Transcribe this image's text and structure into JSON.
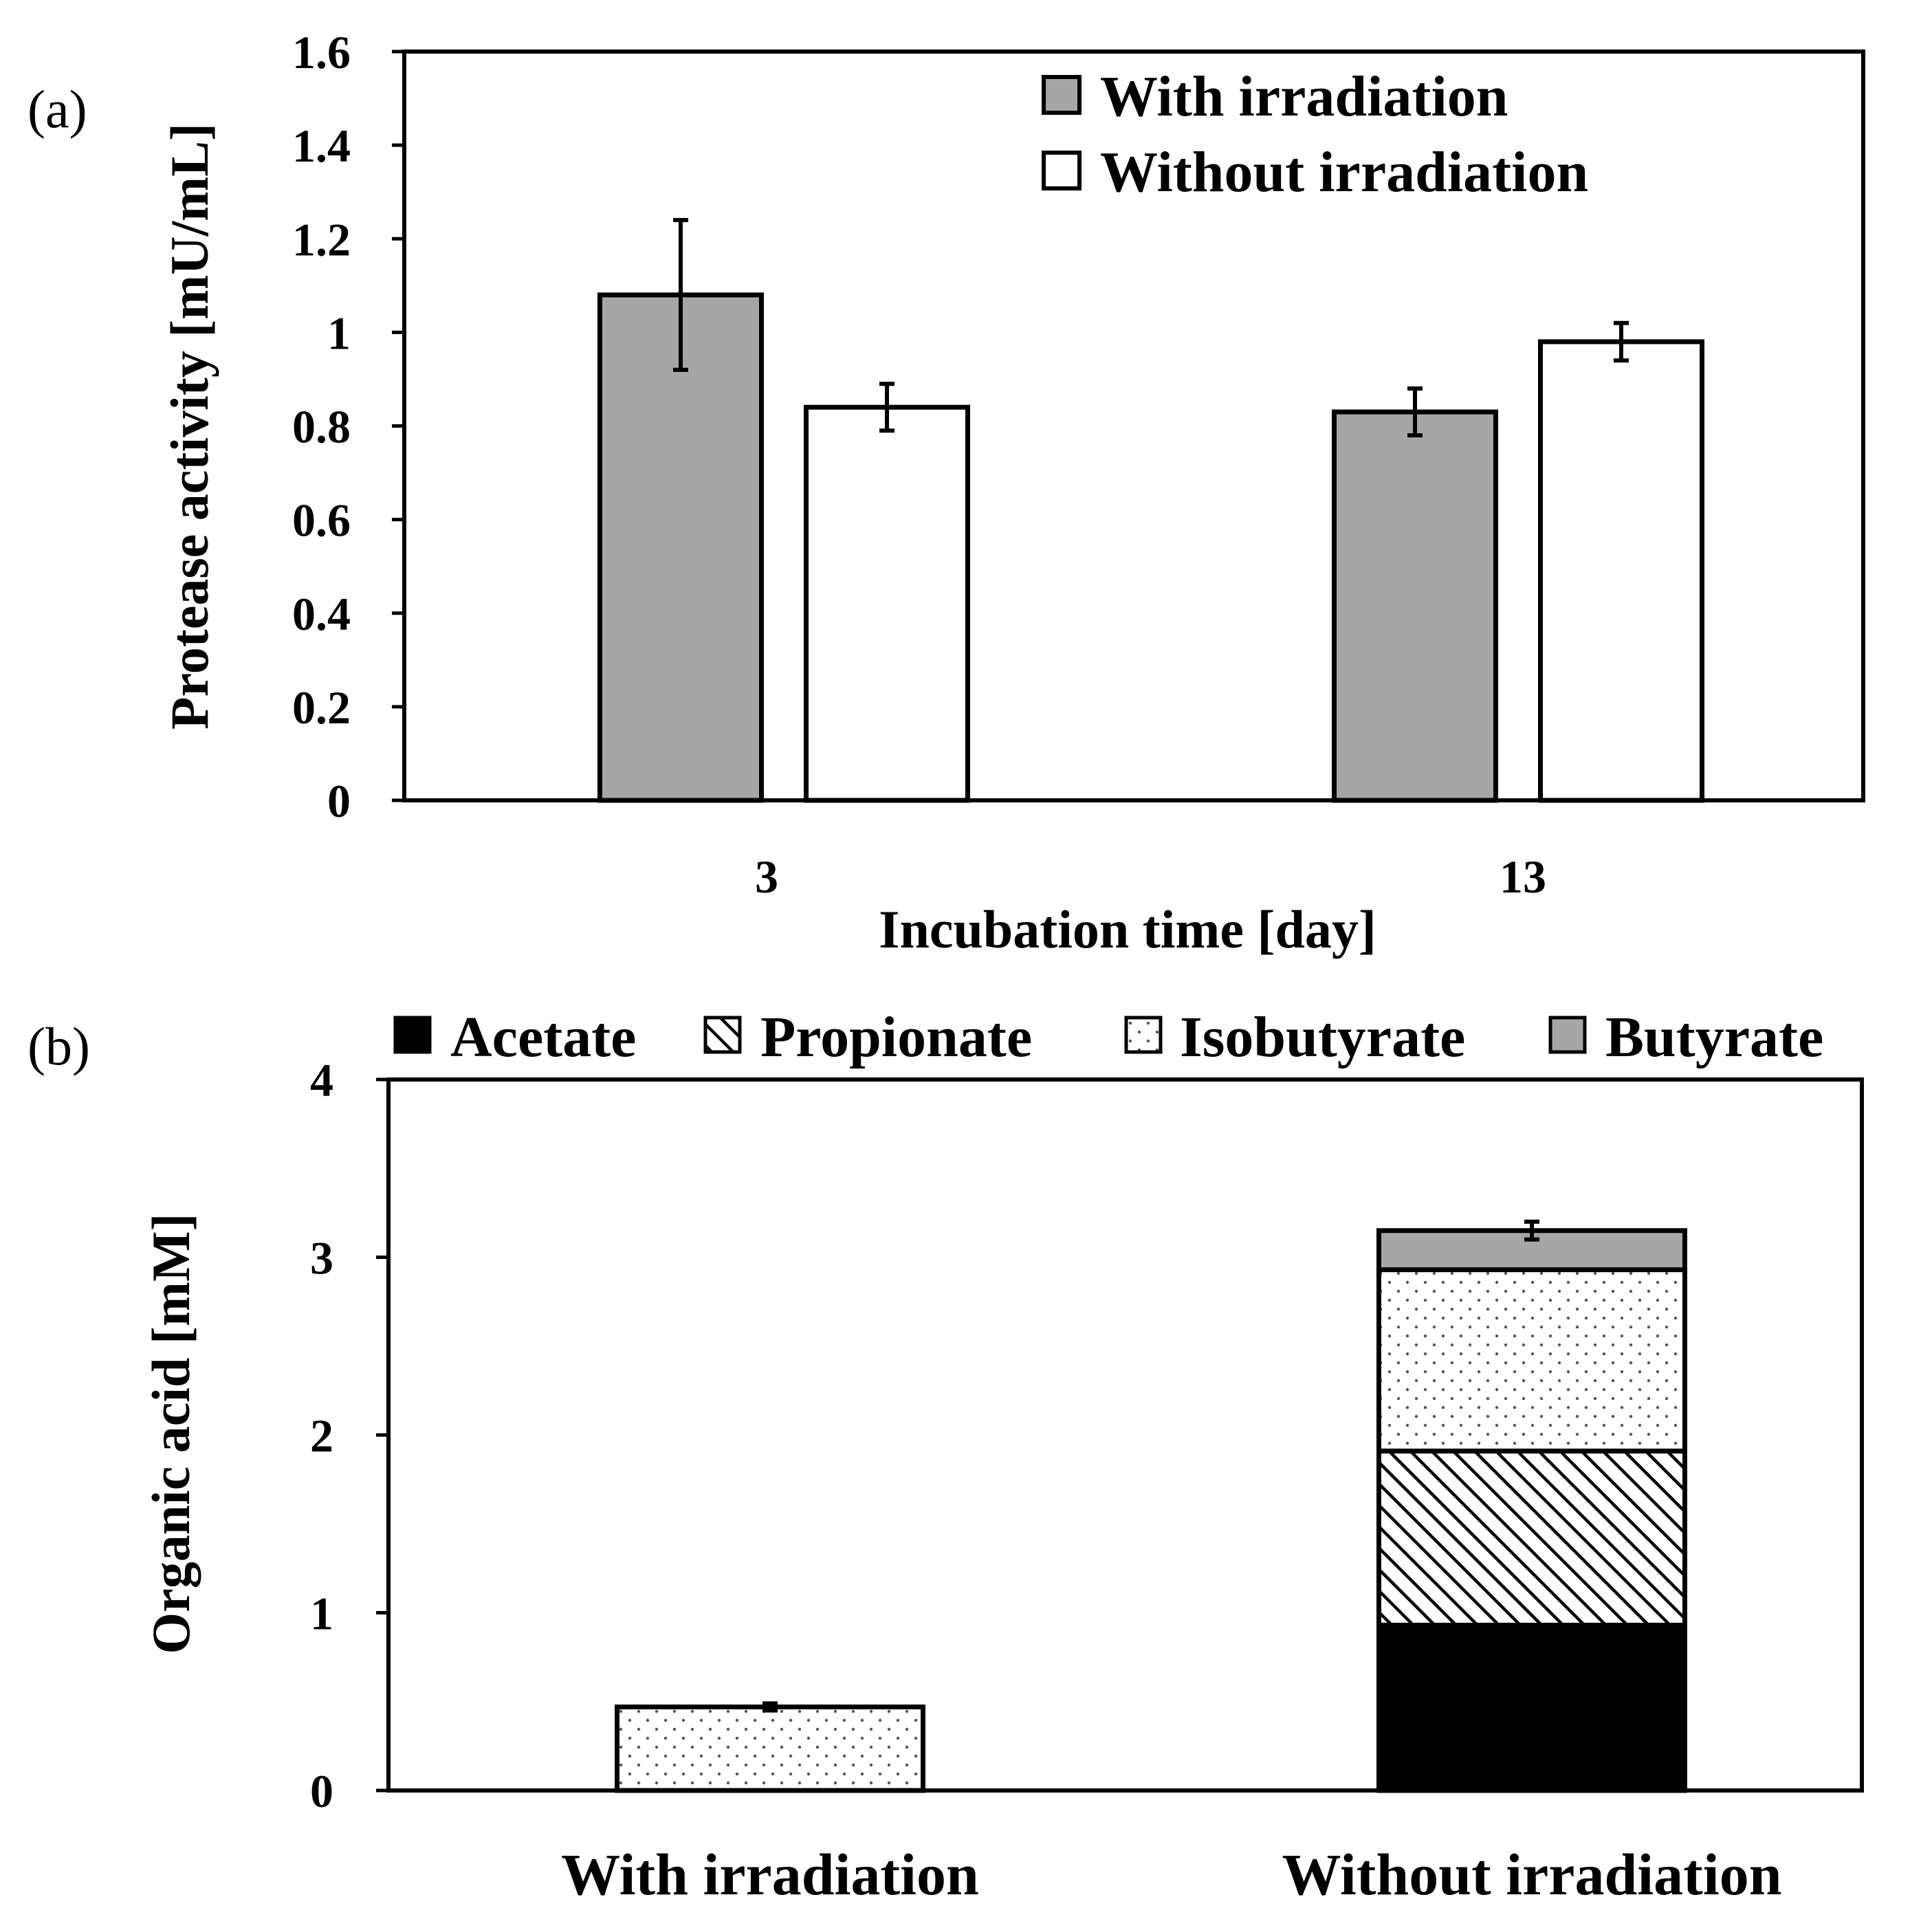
{
  "chart_data": [
    {
      "panel": "(a)",
      "type": "bar",
      "categories": [
        "3",
        "13"
      ],
      "series": [
        {
          "name": "With irradiation",
          "color": "#a6a6a6",
          "values": [
            1.08,
            0.83
          ],
          "errors": [
            0.16,
            0.05
          ]
        },
        {
          "name": "Without irradiation",
          "color": "#ffffff",
          "values": [
            0.84,
            0.98
          ],
          "errors": [
            0.05,
            0.04
          ]
        }
      ],
      "ylim": [
        0,
        1.6
      ],
      "yticks": [
        "0",
        "0.2",
        "0.4",
        "0.6",
        "0.8",
        "1",
        "1.2",
        "1.4",
        "1.6"
      ],
      "xlabel": "Incubation time [day]",
      "ylabel": "Protease activity [mU/mL]",
      "legend_position": "top-right"
    },
    {
      "panel": "(b)",
      "type": "bar",
      "stacked": true,
      "categories": [
        "With irradiation",
        "Without irradiation"
      ],
      "series": [
        {
          "name": "Acetate",
          "color": "#000000",
          "pattern": "solid",
          "values": [
            0,
            0.93
          ]
        },
        {
          "name": "Propionate",
          "color": "#ffffff",
          "pattern": "diagonal-hatch",
          "values": [
            0,
            0.98
          ]
        },
        {
          "name": "Isobutyrate",
          "color": "#ffffff",
          "pattern": "dots",
          "values": [
            0.47,
            1.02
          ]
        },
        {
          "name": "Butyrate",
          "color": "#a6a6a6",
          "pattern": "solid",
          "values": [
            0,
            0.22
          ]
        }
      ],
      "total_errors": [
        0.02,
        0.05
      ],
      "ylim": [
        0,
        4
      ],
      "yticks": [
        "0",
        "1",
        "2",
        "3",
        "4"
      ],
      "xlabel": "",
      "ylabel": "Organic acid [mM]",
      "legend_position": "top"
    }
  ]
}
